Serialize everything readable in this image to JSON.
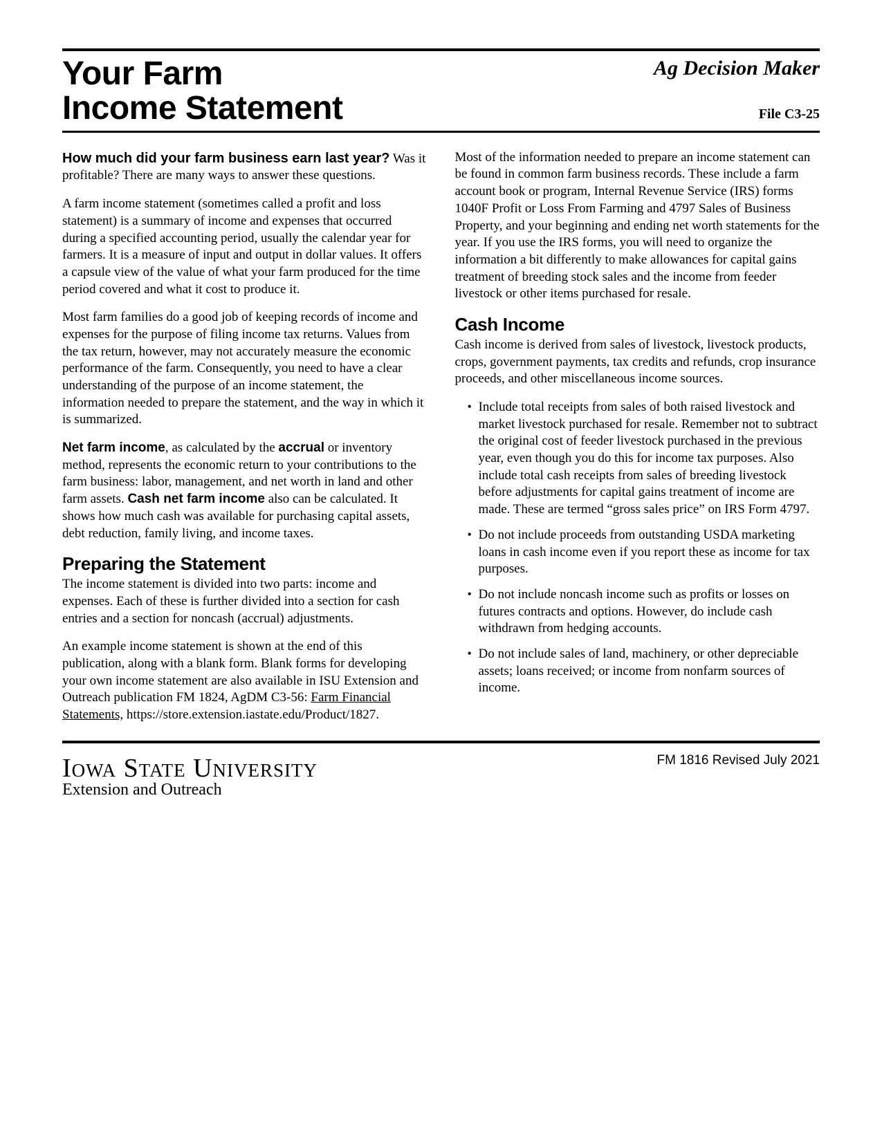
{
  "header": {
    "title_line1": "Your Farm",
    "title_line2": "Income Statement",
    "series": "Ag Decision Maker",
    "file_label": "File  C3-25"
  },
  "col1": {
    "lead_q": "How much did your farm business earn last year?",
    "lead_rest": " Was it profitable? There are many ways to answer these questions.",
    "p2": "A farm income statement (sometimes called a profit and loss statement) is a summary of income and expenses that occurred during a specified accounting period, usually the calendar year for farmers. It is a measure of input and output in dollar values. It offers a capsule view of the value of what your farm produced for the time period covered and what it cost to produce it.",
    "p3": "Most farm families do a good job of keeping records of income and expenses for the purpose of filing income tax returns. Values from the tax return, however, may not accurately measure the economic performance of the farm. Consequently, you need to have a clear understanding of the purpose of an income statement, the information needed to prepare the statement, and the way in which it is summarized.",
    "p4_b1": "Net farm income",
    "p4_mid1": ", as calculated by the ",
    "p4_b2": "accrual",
    "p4_mid2": " or inventory method, represents the economic return to your contributions to the farm business: labor, management, and net worth in land and other farm assets. ",
    "p4_b3": "Cash net farm income",
    "p4_end": " also can be calculated. It shows how much cash was available for purchasing capital assets, debt reduction, family living, and income taxes.",
    "h_prep": "Preparing the Statement",
    "p5": "The income statement is divided into two parts: income and expenses. Each of these is further divided into a section for cash entries and a section for noncash (accrual) adjustments.",
    "p6_a": "An example income statement is shown at the end of this publication, along with a blank form. Blank forms for developing your own income statement are also available in ISU Extension and Outreach publication FM 1824, AgDM C3-56: ",
    "p6_link": "Farm Financial Statements,",
    "p6_b": " https://store.extension.iastate.edu/Product/1827."
  },
  "col2": {
    "p1": "Most of the information needed to prepare an income statement can be found in common farm business records. These include a farm account book or program, Internal Revenue Service (IRS) forms 1040F Profit or Loss From Farming and 4797 Sales of Business Property, and your beginning and ending net worth statements for the year. If you use the IRS forms, you will need to organize the information a bit differently to make allowances for capital gains treatment of breeding stock sales and the income from feeder livestock or other items purchased for resale.",
    "h_cash": "Cash Income",
    "p2": "Cash income is derived from sales of livestock, livestock products, crops, government payments, tax credits and refunds, crop insurance proceeds, and other miscellaneous income sources.",
    "bullets": [
      "Include total receipts from sales of both raised livestock and market livestock purchased for resale. Remember not to subtract the original cost of feeder livestock purchased in the previous year, even though you do this for income tax purposes. Also include total cash receipts from sales of breeding livestock before adjustments for capital gains treatment of income are made. These are termed “gross sales price” on IRS Form 4797.",
      "Do not include proceeds from outstanding USDA marketing loans in cash income even if you report these as income for tax purposes.",
      "Do not include noncash income such as profits or losses on futures contracts and options. However, do include cash withdrawn from hedging accounts.",
      "Do not include sales of land, machinery, or other depreciable assets; loans received; or income from nonfarm sources of income."
    ]
  },
  "footer": {
    "isu": "Iowa State University",
    "sub": "Extension and Outreach",
    "revised": "FM 1816 Revised July 2021"
  }
}
